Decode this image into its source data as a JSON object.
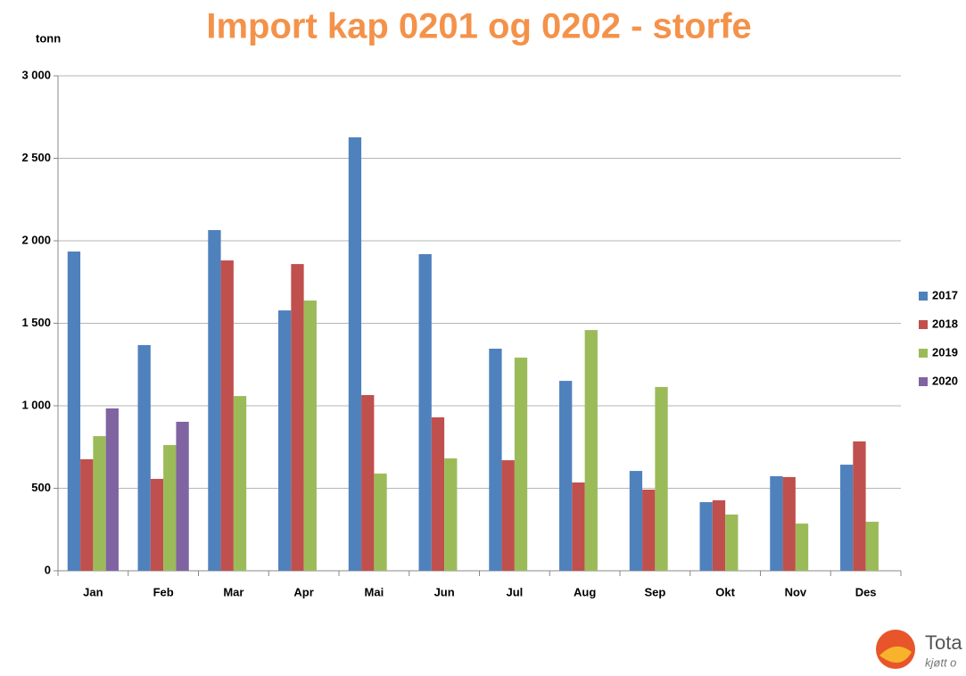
{
  "chart_data": {
    "type": "bar",
    "title": "Import kap 0201 og 0202 - storfe",
    "y_label": "tonn",
    "categories": [
      "Jan",
      "Feb",
      "Mar",
      "Apr",
      "Mai",
      "Jun",
      "Jul",
      "Aug",
      "Sep",
      "Okt",
      "Nov",
      "Des"
    ],
    "series": [
      {
        "name": "2017",
        "color": "#4f81bd",
        "values": [
          1935,
          1368,
          2065,
          1578,
          2627,
          1919,
          1346,
          1151,
          605,
          416,
          573,
          643
        ]
      },
      {
        "name": "2018",
        "color": "#c0504d",
        "values": [
          676,
          557,
          1881,
          1859,
          1065,
          930,
          670,
          535,
          492,
          427,
          568,
          784
        ]
      },
      {
        "name": "2019",
        "color": "#9bbb59",
        "values": [
          816,
          762,
          1059,
          1638,
          589,
          681,
          1292,
          1459,
          1114,
          341,
          286,
          297
        ]
      },
      {
        "name": "2020",
        "color": "#8064a2",
        "values": [
          984,
          903,
          null,
          null,
          null,
          null,
          null,
          null,
          null,
          null,
          null,
          null
        ]
      }
    ],
    "ylim": [
      0,
      3000
    ],
    "yticks": [
      0,
      500,
      {
        "value": 1000,
        "label": "1 000"
      },
      {
        "value": 1500,
        "label": "1 500"
      },
      {
        "value": 2000,
        "label": "2 000"
      },
      {
        "value": 2500,
        "label": "2 500"
      },
      {
        "value": 3000,
        "label": "3 000"
      }
    ],
    "grid": true,
    "legend": "right",
    "logo": {
      "name": "Tota",
      "tagline": "kjøtt o"
    }
  }
}
